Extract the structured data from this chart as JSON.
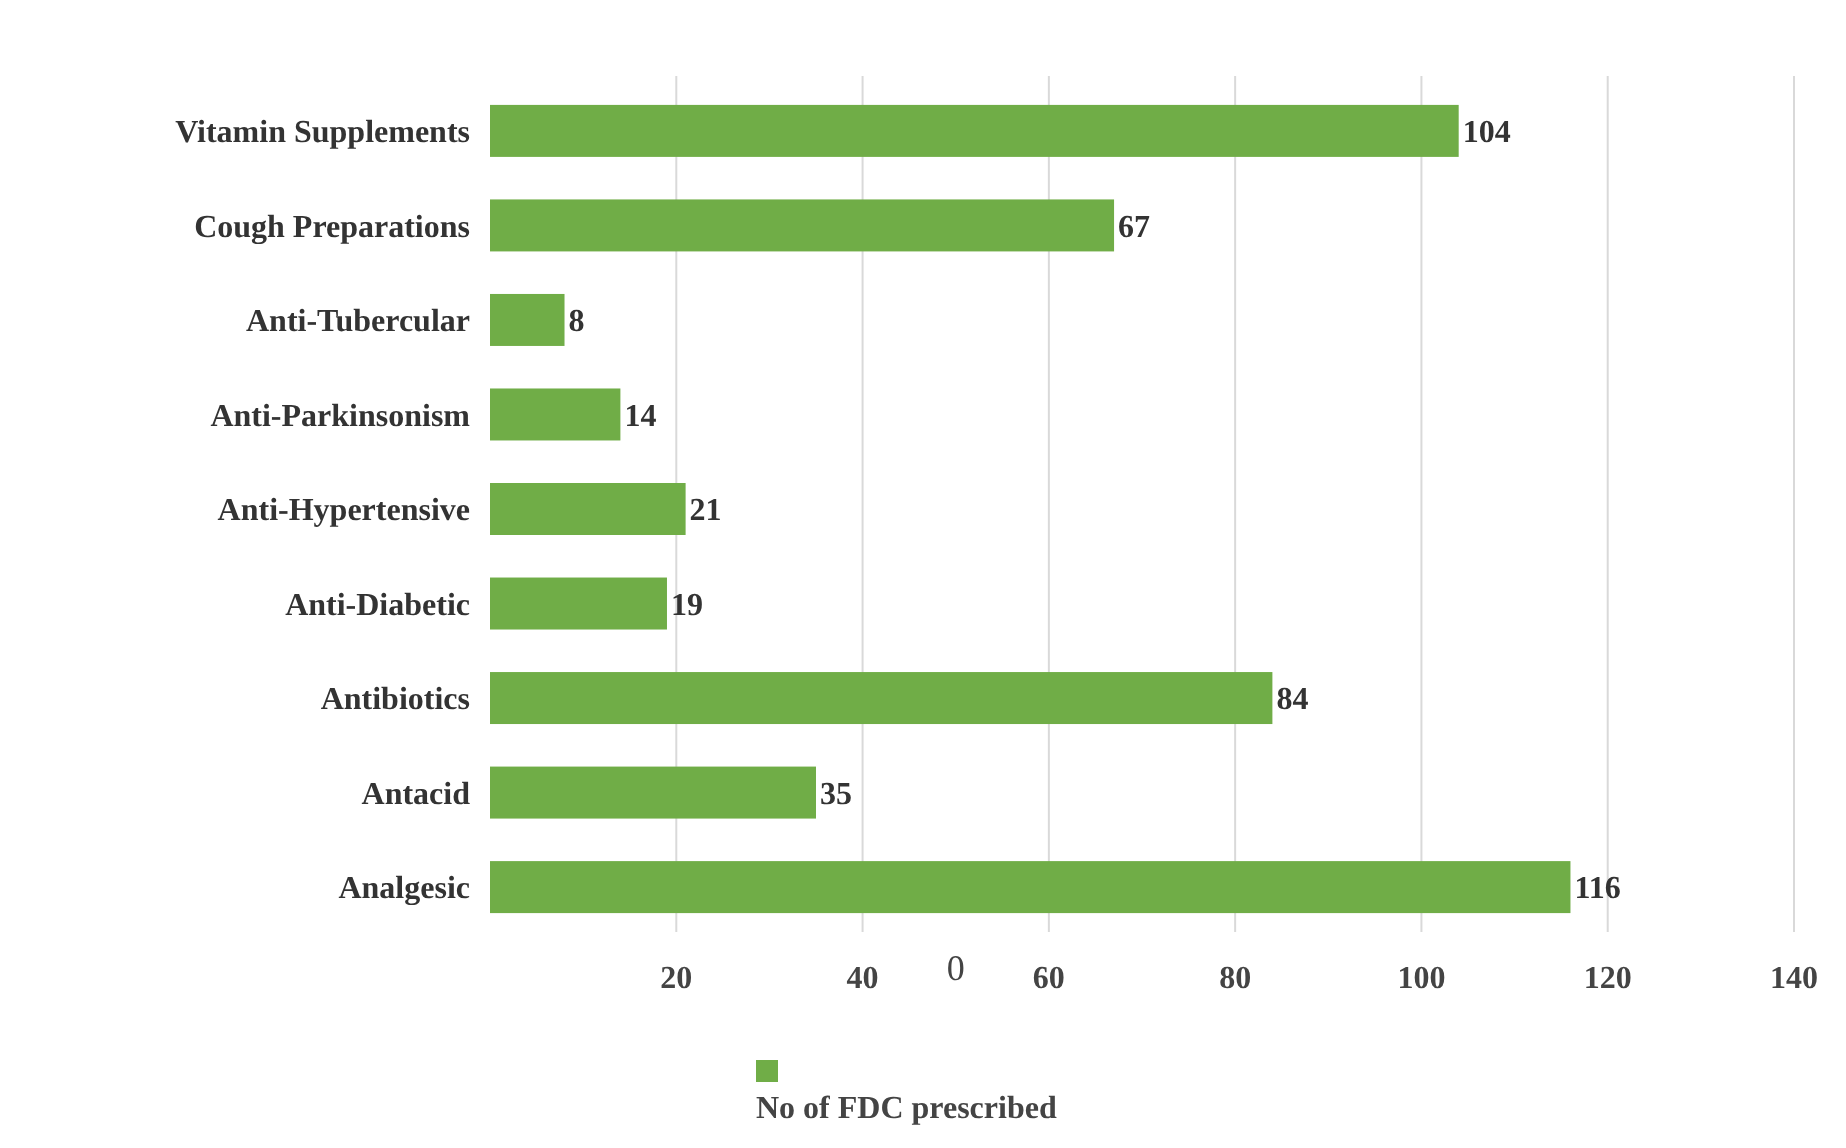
{
  "chart_data": {
    "type": "bar",
    "orientation": "horizontal",
    "categories": [
      "Vitamin Supplements",
      "Cough Preparations",
      "Anti-Tubercular",
      "Anti-Parkinsonism",
      "Anti-Hypertensive",
      "Anti-Diabetic",
      "Antibiotics",
      "Antacid",
      "Analgesic"
    ],
    "series": [
      {
        "name": "No of FDC prescribed",
        "color": "#70ad47",
        "values": [
          104,
          67,
          8,
          14,
          21,
          19,
          84,
          35,
          116
        ]
      }
    ],
    "xlim": [
      0,
      140
    ],
    "xticks": [
      20,
      40,
      60,
      80,
      100,
      120,
      140
    ],
    "grid": "x",
    "data_labels": true,
    "legend": "bottom",
    "annotations": [
      "0"
    ]
  }
}
